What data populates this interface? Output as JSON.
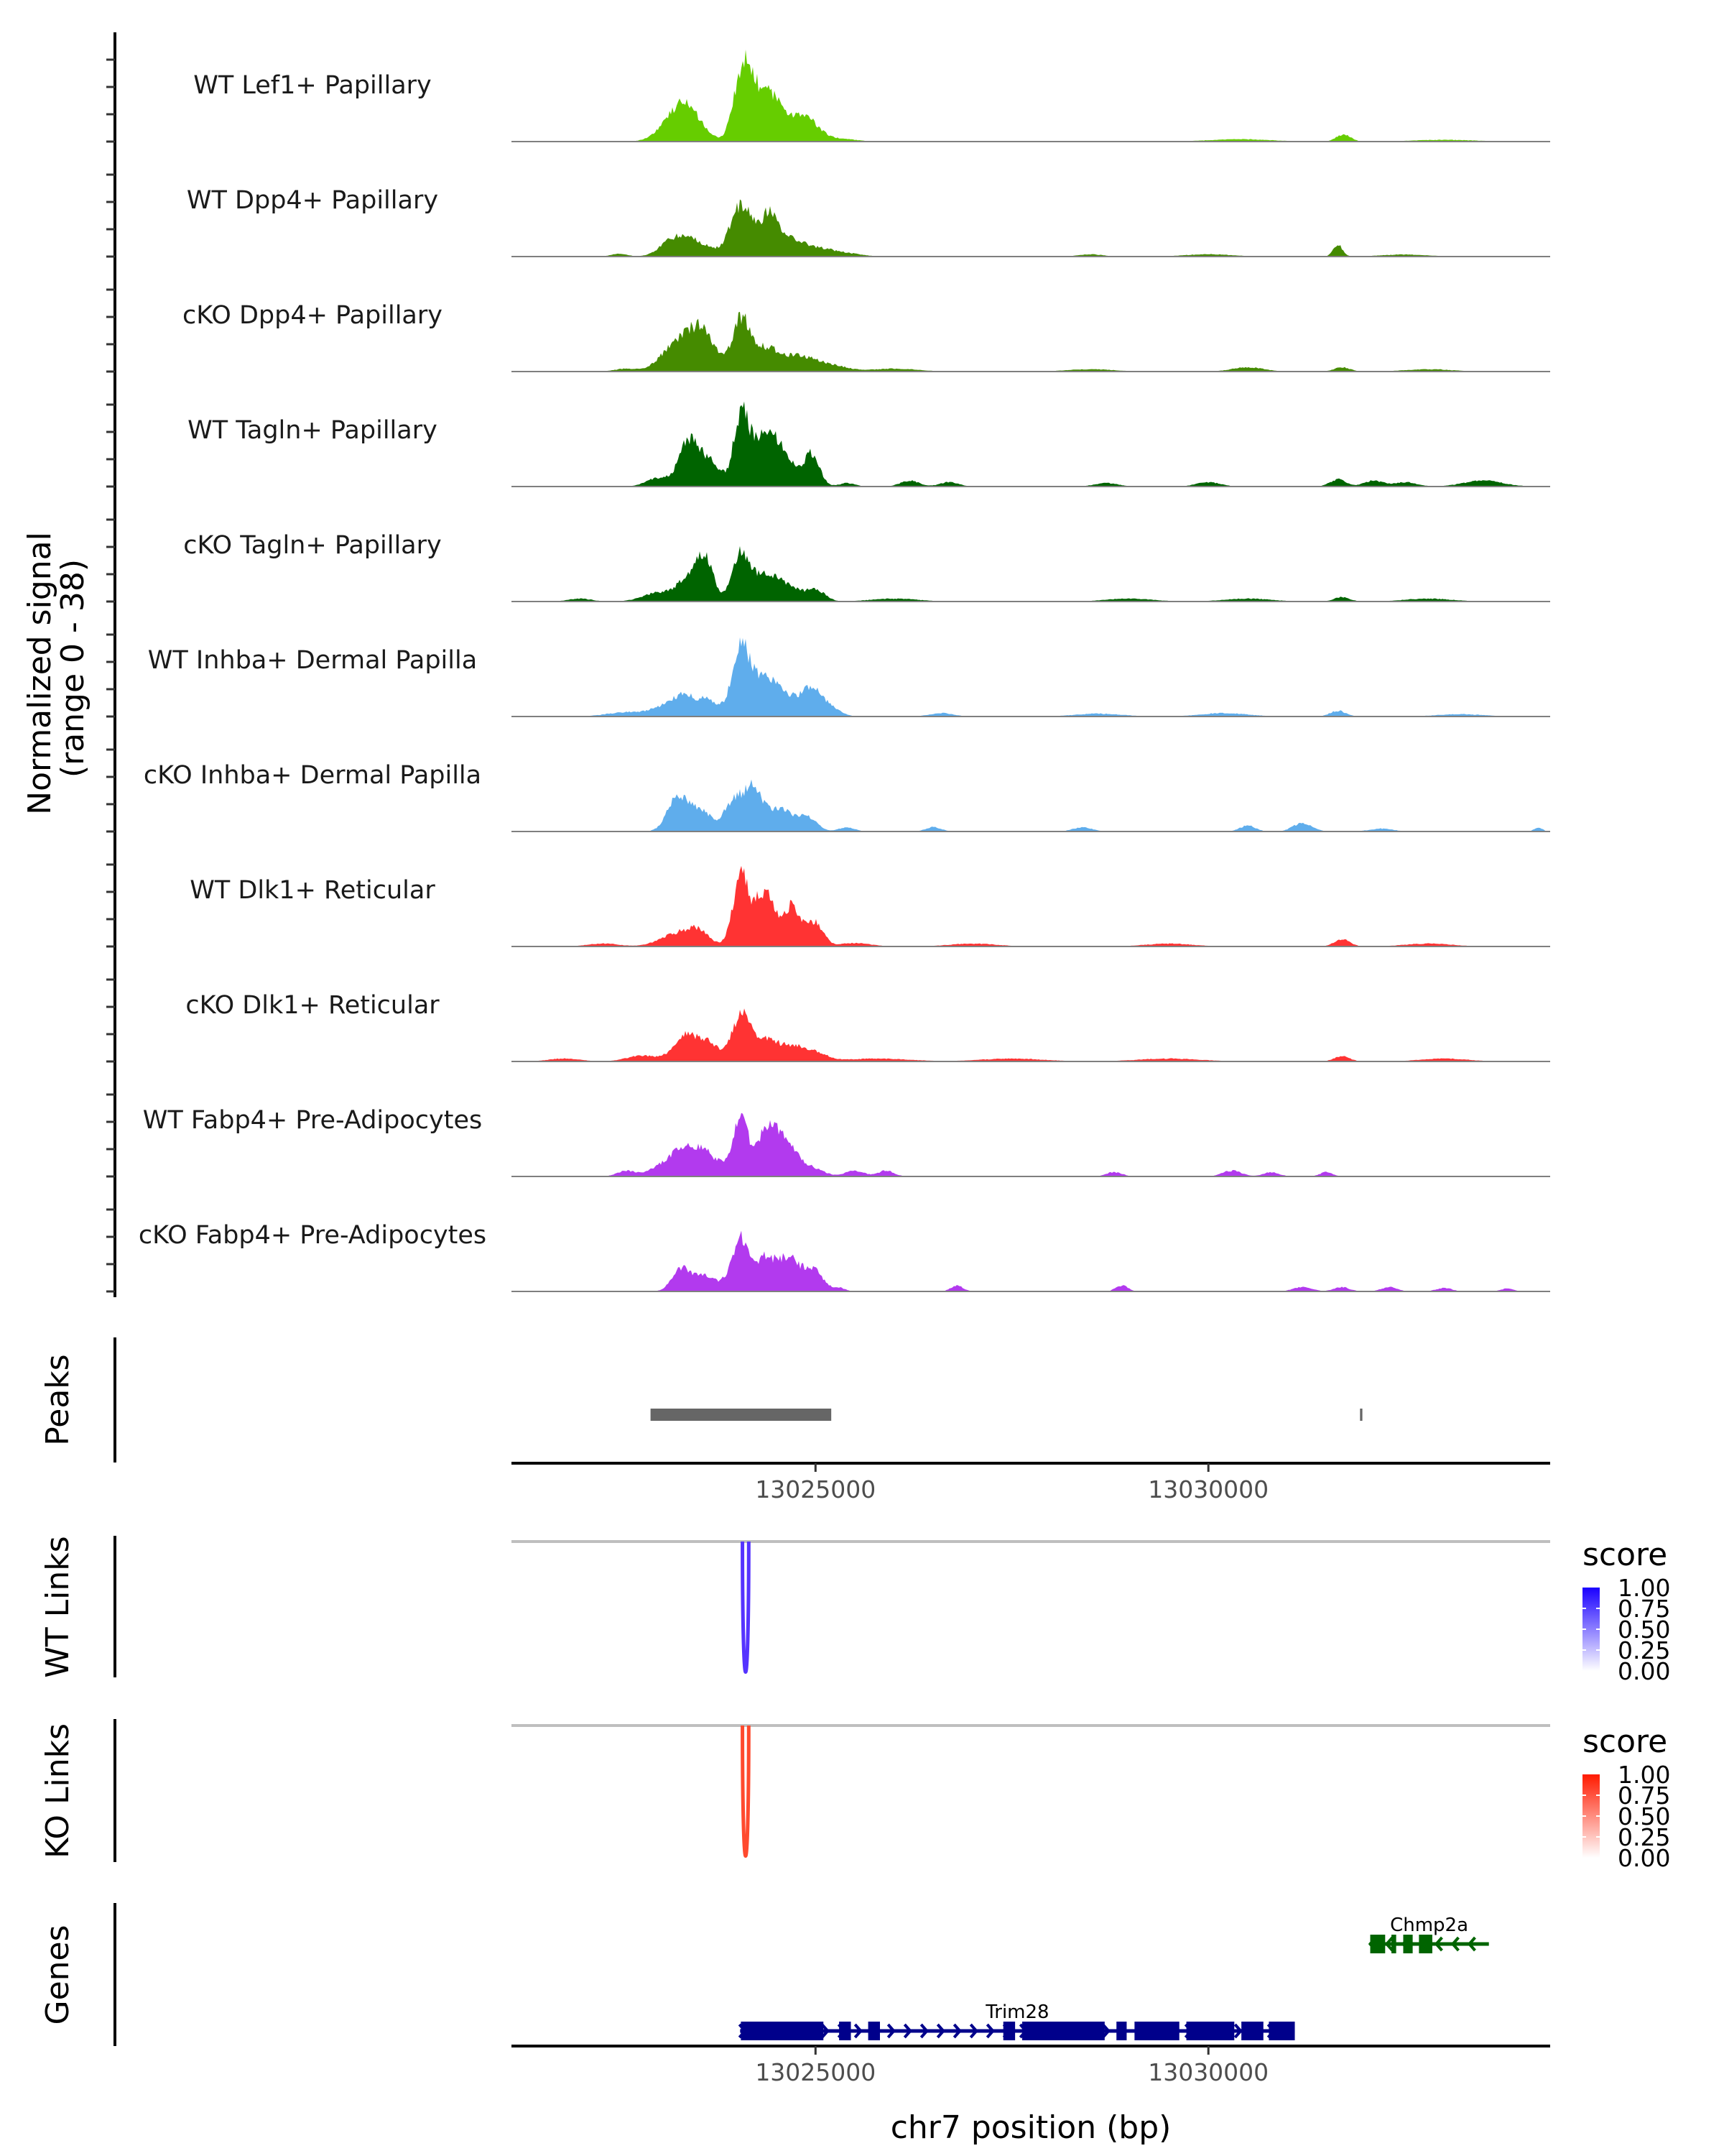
{
  "chart_data": {
    "type": "area",
    "title": "",
    "region": {
      "chrom": "chr7",
      "start": 13021130,
      "end": 13034350
    },
    "ylabel": "Normalized signal\n(range 0 - 38)",
    "ylabel_lines": [
      "Normalized signal",
      "(range 0 - 38)"
    ],
    "ylim": [
      0,
      38
    ],
    "xlabel": "chr7 position (bp)",
    "x_ticks": [
      13025000,
      13030000
    ],
    "x_tick_labels": [
      "13025000",
      "13030000"
    ],
    "tracks": [
      {
        "name": "WT Lef1+ Papillary",
        "color": "#66cd00",
        "peaks": [
          [
            13023150,
            5,
            180
          ],
          [
            13023330,
            9,
            160
          ],
          [
            13023520,
            3,
            150
          ],
          [
            13024070,
            22,
            110
          ],
          [
            13024300,
            14,
            170
          ],
          [
            13024560,
            8,
            180
          ],
          [
            13024900,
            7,
            150
          ],
          [
            13025300,
            1,
            200
          ],
          [
            13031720,
            2.5,
            90
          ],
          [
            13030400,
            0.8,
            400
          ],
          [
            13033000,
            0.6,
            400
          ]
        ]
      },
      {
        "name": "WT Dpp4+ Papillary",
        "color": "#458b00",
        "peaks": [
          [
            13022500,
            1,
            100
          ],
          [
            13023150,
            3,
            150
          ],
          [
            13023400,
            6,
            220
          ],
          [
            13024060,
            18,
            140
          ],
          [
            13024420,
            15,
            110
          ],
          [
            13024700,
            5,
            130
          ],
          [
            13025000,
            3,
            200
          ],
          [
            13025400,
            1,
            200
          ],
          [
            13031650,
            4,
            60
          ],
          [
            13028500,
            0.8,
            150
          ],
          [
            13030000,
            0.8,
            300
          ],
          [
            13032500,
            0.7,
            300
          ]
        ]
      },
      {
        "name": "cKO Dpp4+ Papillary",
        "color": "#458b00",
        "peaks": [
          [
            13022600,
            1,
            150
          ],
          [
            13023100,
            4,
            150
          ],
          [
            13023400,
            11,
            200
          ],
          [
            13023600,
            8,
            150
          ],
          [
            13024050,
            17,
            110
          ],
          [
            13024350,
            8,
            180
          ],
          [
            13024800,
            5,
            200
          ],
          [
            13025200,
            2,
            200
          ],
          [
            13026000,
            1,
            300
          ],
          [
            13028500,
            0.8,
            300
          ],
          [
            13030500,
            1.5,
            200
          ],
          [
            13031700,
            1.5,
            100
          ],
          [
            13032800,
            0.8,
            300
          ]
        ]
      },
      {
        "name": "WT Tagln+ Papillary",
        "color": "#006400",
        "peaks": [
          [
            13023000,
            3,
            150
          ],
          [
            13023380,
            15,
            120
          ],
          [
            13023650,
            9,
            140
          ],
          [
            13024050,
            25,
            90
          ],
          [
            13024250,
            12,
            100
          ],
          [
            13024450,
            14,
            120
          ],
          [
            13024650,
            7,
            130
          ],
          [
            13024950,
            11,
            100
          ],
          [
            13025400,
            1.2,
            100
          ],
          [
            13026200,
            2,
            120
          ],
          [
            13026700,
            1.5,
            120
          ],
          [
            13028700,
            1.2,
            150
          ],
          [
            13030000,
            1.5,
            150
          ],
          [
            13031650,
            2.5,
            100
          ],
          [
            13032100,
            2,
            120
          ],
          [
            13032500,
            1.5,
            150
          ],
          [
            13033500,
            2,
            250
          ]
        ]
      },
      {
        "name": "cKO Tagln+ Papillary",
        "color": "#006400",
        "peaks": [
          [
            13022000,
            1,
            150
          ],
          [
            13023000,
            3,
            200
          ],
          [
            13023400,
            8,
            150
          ],
          [
            13023600,
            13,
            100
          ],
          [
            13024050,
            16,
            110
          ],
          [
            13024350,
            9,
            150
          ],
          [
            13024650,
            5,
            150
          ],
          [
            13025000,
            4,
            120
          ],
          [
            13026000,
            1,
            300
          ],
          [
            13029000,
            1,
            300
          ],
          [
            13030500,
            1,
            300
          ],
          [
            13031700,
            1.5,
            100
          ],
          [
            13032800,
            1,
            300
          ]
        ]
      },
      {
        "name": "WT Inhba+ Dermal Papilla",
        "color": "#5fadec",
        "peaks": [
          [
            13022600,
            1.5,
            250
          ],
          [
            13023050,
            3,
            150
          ],
          [
            13023300,
            6,
            120
          ],
          [
            13023600,
            6,
            160
          ],
          [
            13024050,
            24,
            110
          ],
          [
            13024350,
            13,
            150
          ],
          [
            13024650,
            6,
            140
          ],
          [
            13024950,
            10,
            120
          ],
          [
            13025200,
            3,
            120
          ],
          [
            13026600,
            1.2,
            150
          ],
          [
            13028600,
            1,
            300
          ],
          [
            13030200,
            1.2,
            300
          ],
          [
            13031650,
            2,
            100
          ],
          [
            13033200,
            0.8,
            300
          ]
        ]
      },
      {
        "name": "cKO Inhba+ Dermal Papilla",
        "color": "#5fadec",
        "peaks": [
          [
            13023250,
            12,
            130
          ],
          [
            13023550,
            7,
            140
          ],
          [
            13023950,
            10,
            110
          ],
          [
            13024200,
            15,
            120
          ],
          [
            13024550,
            8,
            150
          ],
          [
            13024900,
            5,
            120
          ],
          [
            13025400,
            1.5,
            100
          ],
          [
            13026500,
            1.5,
            100
          ],
          [
            13028400,
            1.5,
            120
          ],
          [
            13030500,
            2,
            100
          ],
          [
            13031200,
            3,
            120
          ],
          [
            13032200,
            1,
            150
          ],
          [
            13034200,
            1.5,
            50
          ]
        ]
      },
      {
        "name": "WT Dlk1+ Reticular",
        "color": "#ff3333",
        "peaks": [
          [
            13022300,
            1,
            200
          ],
          [
            13023200,
            4,
            200
          ],
          [
            13023500,
            5,
            150
          ],
          [
            13024050,
            24,
            100
          ],
          [
            13024350,
            19,
            120
          ],
          [
            13024700,
            14,
            120
          ],
          [
            13025000,
            8,
            100
          ],
          [
            13025500,
            1.2,
            200
          ],
          [
            13027000,
            1,
            300
          ],
          [
            13029500,
            1,
            300
          ],
          [
            13031700,
            2.5,
            100
          ],
          [
            13032800,
            1,
            300
          ]
        ]
      },
      {
        "name": "cKO Dlk1+ Reticular",
        "color": "#ff3333",
        "peaks": [
          [
            13021800,
            1,
            200
          ],
          [
            13022800,
            2,
            200
          ],
          [
            13023350,
            9,
            150
          ],
          [
            13023650,
            6,
            130
          ],
          [
            13024050,
            16,
            110
          ],
          [
            13024350,
            8,
            150
          ],
          [
            13024700,
            5,
            150
          ],
          [
            13025000,
            3,
            150
          ],
          [
            13025800,
            1,
            400
          ],
          [
            13027500,
            1,
            400
          ],
          [
            13029500,
            1,
            400
          ],
          [
            13031700,
            1.8,
            100
          ],
          [
            13033000,
            1,
            300
          ]
        ]
      },
      {
        "name": "WT Fabp4+ Pre-Adipocytes",
        "color": "#b23aee",
        "peaks": [
          [
            13022600,
            2,
            120
          ],
          [
            13023000,
            3,
            130
          ],
          [
            13023300,
            9,
            150
          ],
          [
            13023550,
            6,
            130
          ],
          [
            13023800,
            4,
            200
          ],
          [
            13024050,
            18,
            90
          ],
          [
            13024400,
            17,
            140
          ],
          [
            13024650,
            9,
            130
          ],
          [
            13024950,
            3,
            150
          ],
          [
            13025500,
            2,
            120
          ],
          [
            13025900,
            2,
            100
          ],
          [
            13028800,
            1.5,
            100
          ],
          [
            13030300,
            2,
            120
          ],
          [
            13030800,
            1.5,
            100
          ],
          [
            13031500,
            1.5,
            80
          ]
        ]
      },
      {
        "name": "cKO Fabp4+ Pre-Adipocytes",
        "color": "#b23aee",
        "peaks": [
          [
            13023300,
            8,
            120
          ],
          [
            13023600,
            5,
            130
          ],
          [
            13023900,
            4,
            100
          ],
          [
            13024050,
            17,
            90
          ],
          [
            13024350,
            12,
            130
          ],
          [
            13024650,
            11,
            120
          ],
          [
            13024950,
            8,
            130
          ],
          [
            13025300,
            1.2,
            80
          ],
          [
            13026800,
            2,
            80
          ],
          [
            13028900,
            2,
            80
          ],
          [
            13031200,
            1.5,
            120
          ],
          [
            13031700,
            1.5,
            100
          ],
          [
            13032300,
            1.5,
            100
          ],
          [
            13033000,
            1.2,
            100
          ],
          [
            13033800,
            1,
            80
          ]
        ]
      }
    ],
    "peaks_track": {
      "label": "Peaks",
      "color": "#666666",
      "regions": [
        [
          13022900,
          13025200
        ],
        [
          13031930,
          13031960
        ]
      ]
    },
    "links": [
      {
        "label": "WT Links",
        "legend_title": "score",
        "color_high": "#1a00ff",
        "color_low": "#ffffff",
        "arcs": [
          {
            "start": 13024070,
            "end": 13024150,
            "score": 0.8
          }
        ],
        "legend_ticks": [
          "1.00",
          "0.75",
          "0.50",
          "0.25",
          "0.00"
        ]
      },
      {
        "label": "KO Links",
        "legend_title": "score",
        "color_high": "#ff1a00",
        "color_low": "#ffffff",
        "arcs": [
          {
            "start": 13024070,
            "end": 13024150,
            "score": 0.8
          }
        ],
        "legend_ticks": [
          "1.00",
          "0.75",
          "0.50",
          "0.25",
          "0.00"
        ]
      }
    ],
    "genes_track": {
      "label": "Genes",
      "genes": [
        {
          "name": "Trim28",
          "strand": "+",
          "color": "#00008b",
          "start": 13024040,
          "end": 13031100,
          "exons": [
            [
              13024050,
              13025100
            ],
            [
              13025300,
              13025450
            ],
            [
              13025670,
              13025820
            ],
            [
              13027390,
              13027540
            ],
            [
              13027630,
              13028680
            ],
            [
              13028830,
              13028960
            ],
            [
              13029060,
              13029630
            ],
            [
              13029720,
              13030330
            ],
            [
              13030420,
              13030700
            ],
            [
              13030770,
              13031100
            ]
          ]
        },
        {
          "name": "Chmp2a",
          "strand": "-",
          "color": "#006400",
          "start": 13032050,
          "end": 13033570,
          "exons": [
            [
              13032060,
              13032250
            ],
            [
              13032330,
              13032390
            ],
            [
              13032480,
              13032600
            ],
            [
              13032680,
              13032850
            ]
          ]
        }
      ]
    }
  }
}
